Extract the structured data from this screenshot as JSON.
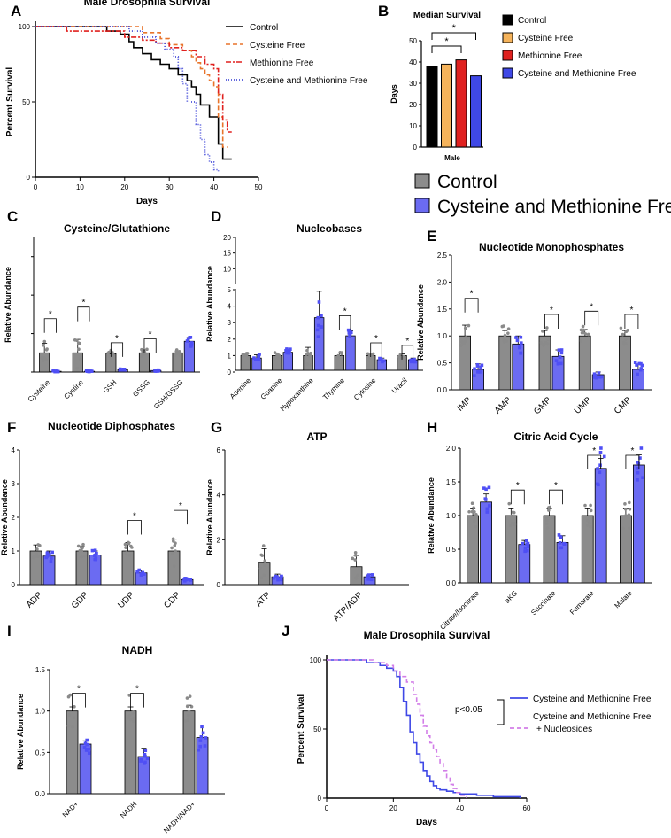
{
  "figure": {
    "legend": {
      "control": "Control",
      "cmf": "Cysteine and Methionine Free",
      "control_color": "#8c8c8c",
      "cmf_color": "#6b6bf2"
    }
  },
  "chart_data": [
    {
      "panel": "A",
      "type": "line",
      "title": "Male Drosophila Survival",
      "xlabel": "Days",
      "ylabel": "Percent Survival",
      "xlim": [
        0,
        50
      ],
      "ylim": [
        0,
        100
      ],
      "xticks": [
        "0",
        "10",
        "20",
        "30",
        "40",
        "50"
      ],
      "yticks": [
        "0",
        "50",
        "100"
      ],
      "series": [
        {
          "name": "Control",
          "color": "#000000",
          "dash": "",
          "x": [
            0,
            15,
            16,
            19,
            21,
            22,
            24,
            26,
            28,
            30,
            32,
            34,
            35,
            36,
            37,
            38,
            39,
            40,
            41,
            42,
            44
          ],
          "y": [
            100,
            100,
            97,
            95,
            90,
            86,
            82,
            78,
            75,
            72,
            68,
            64,
            60,
            55,
            48,
            48,
            40,
            40,
            22,
            12,
            12
          ]
        },
        {
          "name": "Cysteine Free",
          "color": "#e8742b",
          "dash": "5,3",
          "x": [
            0,
            18,
            24,
            28,
            30,
            33,
            35,
            36,
            37,
            38,
            39,
            40,
            41,
            42,
            43
          ],
          "y": [
            100,
            100,
            96,
            92,
            88,
            84,
            80,
            76,
            72,
            68,
            64,
            60,
            40,
            20,
            20
          ]
        },
        {
          "name": "Methionine Free",
          "color": "#e0211f",
          "dash": "6,2,2,2",
          "x": [
            0,
            7,
            17,
            20,
            24,
            27,
            30,
            33,
            36,
            38,
            40,
            41,
            42,
            43,
            44
          ],
          "y": [
            100,
            97,
            97,
            93,
            91,
            89,
            86,
            84,
            80,
            75,
            72,
            55,
            38,
            30,
            30
          ]
        },
        {
          "name": "Cysteine and Methionine Free",
          "color": "#2e36d4",
          "dash": "1,2",
          "x": [
            0,
            19,
            21,
            24,
            27,
            29,
            31,
            32,
            33,
            34,
            35,
            36,
            37,
            38,
            39,
            40,
            41
          ],
          "y": [
            100,
            100,
            97,
            93,
            89,
            85,
            80,
            72,
            62,
            50,
            50,
            35,
            25,
            15,
            10,
            5,
            4
          ]
        }
      ]
    },
    {
      "panel": "B",
      "type": "bar",
      "title": "Median Survival",
      "xlabel": "Male",
      "ylabel": "Days",
      "ylim": [
        0,
        50
      ],
      "yticks": [
        "0",
        "10",
        "20",
        "30",
        "40",
        "50"
      ],
      "categories": [
        "Control",
        "Cysteine Free",
        "Methionine Free",
        "Cysteine and Methionine Free"
      ],
      "values": [
        38,
        39,
        41,
        33.5
      ],
      "colors": [
        "#000000",
        "#f5b35b",
        "#e0211f",
        "#3f48e6"
      ],
      "sig": "*"
    },
    {
      "panel": "C",
      "type": "bar",
      "title": "Cysteine/Glutathione",
      "ylabel": "Relative Abundance",
      "ylim": [
        0,
        7
      ],
      "categories": [
        "Cysteine",
        "Cystine",
        "GSH",
        "GSSG",
        "GSH/GSSG"
      ],
      "control": [
        1.0,
        1.0,
        0.95,
        1.0,
        1.0
      ],
      "control_err": [
        0.5,
        0.7,
        0.1,
        0.15,
        0.1
      ],
      "cmf": [
        0.04,
        0.04,
        0.12,
        0.08,
        1.6
      ],
      "cmf_err": [
        0.02,
        0.02,
        0.03,
        0.03,
        0.2
      ],
      "sig": [
        "*",
        "*",
        "*",
        "*",
        ""
      ]
    },
    {
      "panel": "D",
      "type": "bar",
      "title": "Nucleobases",
      "ylabel": "Relative Abundance",
      "ylim": [
        0,
        20
      ],
      "yticks_low": [
        "0",
        "1",
        "2",
        "3",
        "4",
        "5"
      ],
      "yticks_high": [
        "5",
        "10",
        "15",
        "20"
      ],
      "categories": [
        "Adenine",
        "Guanine",
        "Hypoxanthine",
        "Thymine",
        "Cytosine",
        "Uracil"
      ],
      "control": [
        1.0,
        1.0,
        1.0,
        1.0,
        1.0,
        1.0
      ],
      "control_err": [
        0.15,
        0.15,
        0.5,
        0.15,
        0.15,
        0.1
      ],
      "cmf": [
        0.85,
        1.2,
        3.3,
        2.2,
        0.75,
        0.75
      ],
      "cmf_err": [
        0.2,
        0.2,
        1.6,
        0.3,
        0.1,
        0.1
      ],
      "sig": [
        "",
        "",
        "",
        "*",
        "*",
        "*"
      ]
    },
    {
      "panel": "E",
      "type": "bar",
      "title": "Nucleotide Monophosphates",
      "ylabel": "Relative Abundance",
      "ylim": [
        0,
        2.5
      ],
      "yticks": [
        "0.0",
        "0.5",
        "1.0",
        "1.5",
        "2.0",
        "2.5"
      ],
      "categories": [
        "IMP",
        "AMP",
        "GMP",
        "UMP",
        "CMP"
      ],
      "control": [
        1.0,
        1.0,
        1.0,
        1.0,
        1.0
      ],
      "control_err": [
        0.2,
        0.1,
        0.1,
        0.12,
        0.1
      ],
      "cmf": [
        0.38,
        0.85,
        0.62,
        0.28,
        0.38
      ],
      "cmf_err": [
        0.1,
        0.15,
        0.12,
        0.05,
        0.1
      ],
      "sig": [
        "*",
        "",
        "*",
        "*",
        "*"
      ]
    },
    {
      "panel": "F",
      "type": "bar",
      "title": "Nucleotide Diphosphates",
      "ylabel": "Relative Abundance",
      "ylim": [
        0,
        4
      ],
      "yticks": [
        "0",
        "1",
        "2",
        "3",
        "4"
      ],
      "categories": [
        "ADP",
        "GDP",
        "UDP",
        "CDP"
      ],
      "control": [
        1.0,
        1.0,
        1.0,
        1.0
      ],
      "control_err": [
        0.18,
        0.15,
        0.25,
        0.35
      ],
      "cmf": [
        0.85,
        0.88,
        0.35,
        0.15
      ],
      "cmf_err": [
        0.15,
        0.12,
        0.08,
        0.05
      ],
      "sig": [
        "",
        "",
        "*",
        "*"
      ]
    },
    {
      "panel": "G",
      "type": "bar",
      "title": "ATP",
      "ylabel": "Relative Abundance",
      "ylim": [
        0,
        6
      ],
      "yticks": [
        "0",
        "2",
        "4",
        "6"
      ],
      "categories": [
        "ATP",
        "ATP/ADP"
      ],
      "control": [
        1.0,
        0.8
      ],
      "control_err": [
        0.6,
        0.5
      ],
      "cmf": [
        0.35,
        0.35
      ],
      "cmf_err": [
        0.12,
        0.1
      ],
      "sig": [
        "",
        ""
      ]
    },
    {
      "panel": "H",
      "type": "bar",
      "title": "Citric Acid Cycle",
      "ylabel": "Relative Abundance",
      "ylim": [
        0,
        2.0
      ],
      "yticks": [
        "0.0",
        "0.5",
        "1.0",
        "1.5",
        "2.0"
      ],
      "categories": [
        "Citrate/Isocitrate",
        "aKG",
        "Succinate",
        "Fumarate",
        "Malate"
      ],
      "control": [
        1.0,
        1.0,
        1.0,
        1.0,
        1.0
      ],
      "control_err": [
        0.1,
        0.1,
        0.1,
        0.1,
        0.1
      ],
      "cmf": [
        1.2,
        0.57,
        0.6,
        1.7,
        1.75
      ],
      "cmf_err": [
        0.12,
        0.06,
        0.1,
        0.15,
        0.15
      ],
      "sig": [
        "",
        "*",
        "*",
        "*",
        "*"
      ]
    },
    {
      "panel": "I",
      "type": "bar",
      "title": "NADH",
      "ylabel": "Relative Abundance",
      "ylim": [
        0,
        1.5
      ],
      "yticks": [
        "0.0",
        "0.5",
        "1.0",
        "1.5"
      ],
      "categories": [
        "NAD+",
        "NADH",
        "NADH/NAD+"
      ],
      "control": [
        1.0,
        1.0,
        1.0
      ],
      "control_err": [
        0.05,
        0.05,
        0.07
      ],
      "cmf": [
        0.6,
        0.45,
        0.68
      ],
      "cmf_err": [
        0.04,
        0.1,
        0.15
      ],
      "sig": [
        "*",
        "*",
        ""
      ]
    },
    {
      "panel": "J",
      "type": "line",
      "title": "Male Drosophila Survival",
      "xlabel": "Days",
      "ylabel": "Percent Survival",
      "xlim": [
        0,
        60
      ],
      "ylim": [
        0,
        100
      ],
      "xticks": [
        "0",
        "20",
        "40",
        "60"
      ],
      "yticks": [
        "0",
        "50",
        "100"
      ],
      "pvalue": "p<0.05",
      "series": [
        {
          "name": "Cysteine and Methionine Free",
          "color": "#3f48e6",
          "dash": "",
          "x": [
            0,
            8,
            12,
            16,
            18,
            20,
            21,
            22,
            23,
            24,
            25,
            26,
            27,
            28,
            29,
            30,
            31,
            32,
            33,
            34,
            36,
            38,
            40,
            45,
            50,
            58
          ],
          "y": [
            100,
            100,
            98,
            96,
            94,
            92,
            88,
            80,
            70,
            60,
            48,
            40,
            32,
            26,
            20,
            16,
            12,
            9,
            7,
            6,
            5,
            4,
            3,
            2,
            1,
            0
          ]
        },
        {
          "name": "Cysteine and Methionine Free + Nucleosides",
          "color": "#d27ee8",
          "dash": "5,3",
          "x": [
            0,
            10,
            14,
            18,
            20,
            22,
            24,
            26,
            27,
            28,
            29,
            30,
            31,
            32,
            33,
            34,
            35,
            36,
            37,
            38,
            39,
            40,
            42
          ],
          "y": [
            100,
            100,
            98,
            96,
            92,
            88,
            84,
            75,
            68,
            60,
            52,
            45,
            40,
            35,
            30,
            25,
            20,
            15,
            10,
            7,
            4,
            2,
            0
          ]
        }
      ]
    }
  ]
}
